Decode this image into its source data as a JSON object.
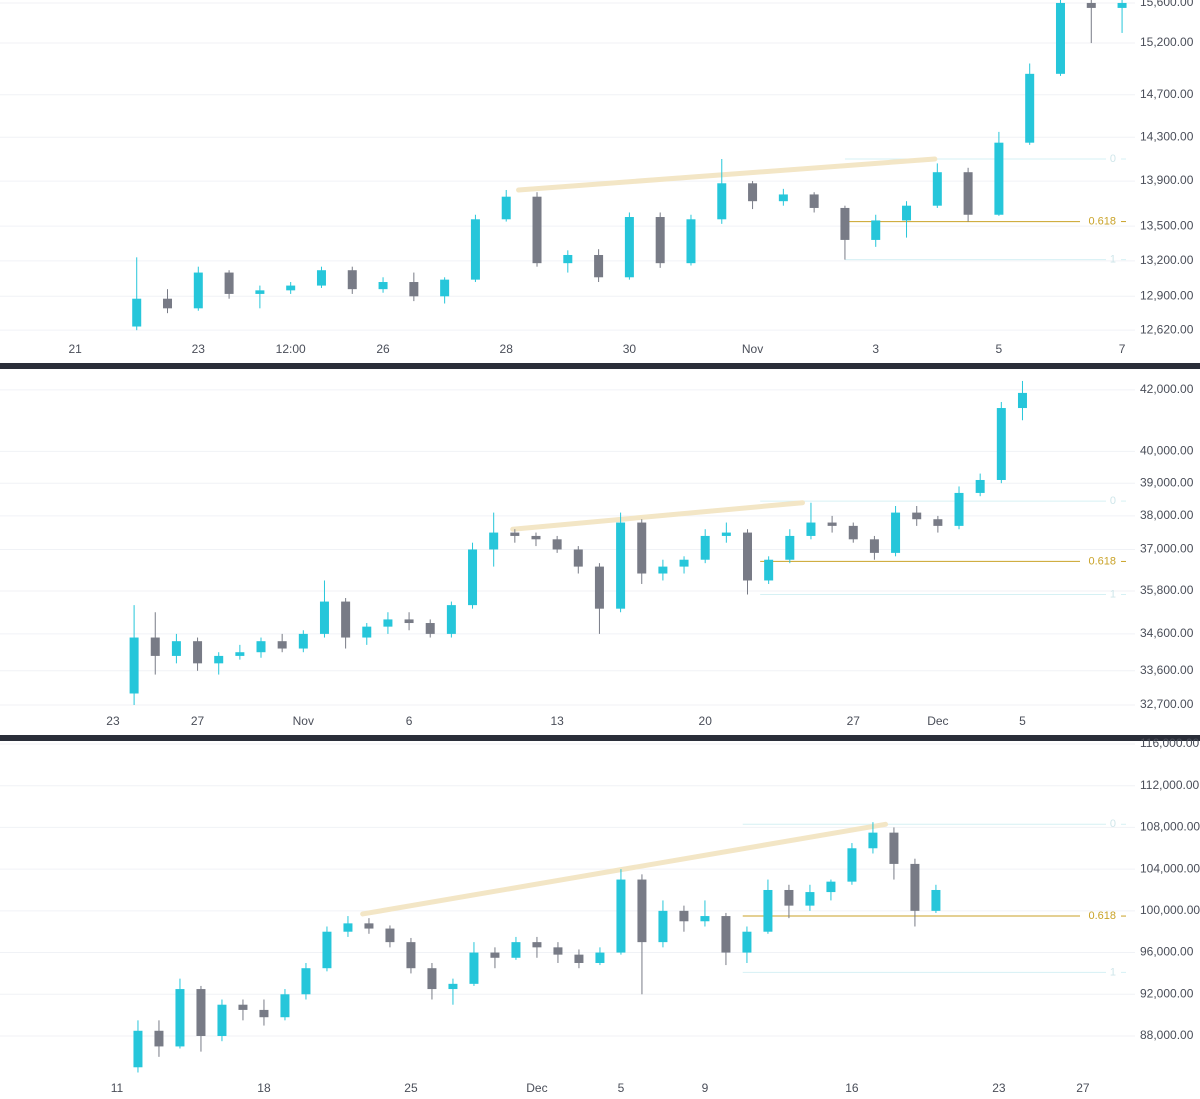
{
  "chart_data": [
    {
      "type": "candlestick",
      "log": true,
      "grid": true,
      "up_color": "#26c6da",
      "down_color": "#787b86",
      "xlim": [
        -1.22,
        17.21
      ],
      "ylim": [
        12540,
        15630
      ],
      "xticks": [
        {
          "value": 0,
          "label": "21"
        },
        {
          "value": 2,
          "label": "23"
        },
        {
          "value": 3.5,
          "label": "12:00"
        },
        {
          "value": 5,
          "label": "26"
        },
        {
          "value": 7,
          "label": "28"
        },
        {
          "value": 9,
          "label": "30"
        },
        {
          "value": 11,
          "label": "Nov"
        },
        {
          "value": 13,
          "label": "3"
        },
        {
          "value": 15,
          "label": "5"
        },
        {
          "value": 17,
          "label": "7"
        }
      ],
      "yticks": [
        {
          "value": 12620,
          "label": "12,620.00"
        },
        {
          "value": 12900,
          "label": "12,900.00"
        },
        {
          "value": 13200,
          "label": "13,200.00"
        },
        {
          "value": 13500,
          "label": "13,500.00"
        },
        {
          "value": 13900,
          "label": "13,900.00"
        },
        {
          "value": 14300,
          "label": "14,300.00"
        },
        {
          "value": 14700,
          "label": "14,700.00"
        },
        {
          "value": 15200,
          "label": "15,200.00"
        },
        {
          "value": 15600,
          "label": "15,600.00"
        }
      ],
      "x": [
        1,
        1.5,
        2,
        2.5,
        3,
        3.5,
        4,
        4.5,
        5,
        5.5,
        6,
        6.5,
        7,
        7.5,
        8,
        8.5,
        9,
        9.5,
        10,
        10.5,
        11,
        11.5,
        12,
        12.5,
        13,
        13.5,
        14,
        14.5,
        15,
        15.5,
        16,
        16.5,
        17
      ],
      "open": [
        12650,
        12880,
        12800,
        13100,
        12920,
        12950,
        12990,
        13120,
        12960,
        13020,
        12900,
        13040,
        13560,
        13760,
        13180,
        13250,
        13060,
        13580,
        13180,
        13560,
        13880,
        13720,
        13780,
        13660,
        13380,
        13550,
        13680,
        13980,
        13600,
        14250,
        14900,
        15600,
        15550
      ],
      "high": [
        13230,
        12960,
        13150,
        13120,
        12990,
        13020,
        13150,
        13150,
        13060,
        13100,
        13060,
        13600,
        13820,
        13800,
        13290,
        13300,
        13620,
        13620,
        13600,
        14100,
        13900,
        13830,
        13800,
        13680,
        13600,
        13720,
        14060,
        14020,
        14350,
        15000,
        15650,
        15650,
        15650
      ],
      "low": [
        12620,
        12760,
        12780,
        12880,
        12800,
        12920,
        12970,
        12920,
        12930,
        12860,
        12840,
        13020,
        13540,
        13150,
        13100,
        13020,
        13040,
        13140,
        13160,
        13520,
        13650,
        13680,
        13620,
        13210,
        13320,
        13400,
        13660,
        13540,
        13590,
        14230,
        14880,
        15200,
        15300
      ],
      "close": [
        12880,
        12800,
        13100,
        12920,
        12950,
        12990,
        13120,
        12960,
        13020,
        12900,
        13040,
        13560,
        13760,
        13180,
        13250,
        13060,
        13580,
        13180,
        13560,
        13880,
        13720,
        13780,
        13660,
        13380,
        13550,
        13680,
        13980,
        13600,
        14250,
        14900,
        15600,
        15550,
        15600
      ],
      "trendline": {
        "x": [
          7.2,
          13.96
        ],
        "y": [
          13820,
          14100
        ],
        "color": "#f3e6c6"
      },
      "fib_from": 12.5,
      "fib_levels": [
        {
          "ratio": 0,
          "price": 14100
        },
        {
          "ratio": 0.618,
          "price": 13540
        },
        {
          "ratio": 1,
          "price": 13210
        }
      ]
    },
    {
      "type": "candlestick",
      "log": true,
      "grid": true,
      "up_color": "#26c6da",
      "down_color": "#787b86",
      "xlim": [
        -5.34,
        48.32
      ],
      "ylim": [
        32570,
        42670
      ],
      "xticks": [
        {
          "value": 0,
          "label": "23"
        },
        {
          "value": 4,
          "label": "27"
        },
        {
          "value": 9,
          "label": "Nov"
        },
        {
          "value": 14,
          "label": "6"
        },
        {
          "value": 21,
          "label": "13"
        },
        {
          "value": 28,
          "label": "20"
        },
        {
          "value": 35,
          "label": "27"
        },
        {
          "value": 39,
          "label": "Dec"
        },
        {
          "value": 43,
          "label": "5"
        }
      ],
      "yticks": [
        {
          "value": 32700,
          "label": "32,700.00"
        },
        {
          "value": 33600,
          "label": "33,600.00"
        },
        {
          "value": 34600,
          "label": "34,600.00"
        },
        {
          "value": 35800,
          "label": "35,800.00"
        },
        {
          "value": 37000,
          "label": "37,000.00"
        },
        {
          "value": 38000,
          "label": "38,000.00"
        },
        {
          "value": 39000,
          "label": "39,000.00"
        },
        {
          "value": 40000,
          "label": "40,000.00"
        },
        {
          "value": 42000,
          "label": "42,000.00"
        }
      ],
      "x": [
        1,
        2,
        3,
        4,
        5,
        6,
        7,
        8,
        9,
        10,
        11,
        12,
        13,
        14,
        15,
        16,
        17,
        18,
        19,
        20,
        21,
        22,
        23,
        24,
        25,
        26,
        27,
        28,
        29,
        30,
        31,
        32,
        33,
        34,
        35,
        36,
        37,
        38,
        39,
        40,
        41,
        42,
        43
      ],
      "open": [
        33000,
        34500,
        34000,
        34400,
        33800,
        34000,
        34100,
        34400,
        34200,
        34600,
        35500,
        34500,
        34800,
        35000,
        34900,
        34600,
        35400,
        37000,
        37500,
        37400,
        37300,
        37000,
        36500,
        35300,
        37800,
        36300,
        36500,
        36700,
        37400,
        37500,
        36100,
        36700,
        37400,
        37800,
        37700,
        37300,
        36900,
        38100,
        37900,
        37700,
        38700,
        39100,
        41400
      ],
      "high": [
        35400,
        35200,
        34600,
        34500,
        34100,
        34300,
        34500,
        34600,
        34700,
        36100,
        35600,
        34900,
        35200,
        35200,
        35000,
        35500,
        37200,
        38100,
        37600,
        37500,
        37400,
        37100,
        36600,
        38100,
        37900,
        36700,
        36800,
        37600,
        37800,
        37600,
        36800,
        37600,
        38400,
        38000,
        37800,
        37400,
        38300,
        38300,
        38000,
        38900,
        39300,
        41600,
        42300
      ],
      "low": [
        32700,
        33500,
        33800,
        33600,
        33500,
        33900,
        33950,
        34100,
        34100,
        34500,
        34200,
        34300,
        34600,
        34700,
        34500,
        34500,
        35300,
        36500,
        37200,
        37100,
        36900,
        36300,
        34600,
        35200,
        36000,
        36100,
        36300,
        36600,
        37200,
        35700,
        36000,
        36600,
        37300,
        37500,
        37200,
        36700,
        36800,
        37700,
        37500,
        37600,
        38600,
        39000,
        41000
      ],
      "close": [
        34500,
        34000,
        34400,
        33800,
        34000,
        34100,
        34400,
        34200,
        34600,
        35500,
        34500,
        34800,
        35000,
        34900,
        34600,
        35400,
        37000,
        37500,
        37400,
        37300,
        37000,
        36500,
        35300,
        37800,
        36300,
        36500,
        36700,
        37400,
        37500,
        36100,
        36700,
        37400,
        37800,
        37700,
        37300,
        36900,
        38100,
        37900,
        37700,
        38700,
        39100,
        41400,
        41900
      ],
      "trendline": {
        "x": [
          18.9,
          32.6
        ],
        "y": [
          37600,
          38400
        ],
        "color": "#f3e6c6"
      },
      "fib_from": 30.6,
      "fib_levels": [
        {
          "ratio": 0,
          "price": 38450
        },
        {
          "ratio": 0.618,
          "price": 36650
        },
        {
          "ratio": 1,
          "price": 35700
        }
      ]
    },
    {
      "type": "candlestick",
      "log": false,
      "grid": true,
      "up_color": "#26c6da",
      "down_color": "#787b86",
      "xlim": [
        -5.57,
        48.48
      ],
      "ylim": [
        83780,
        116190
      ],
      "xticks": [
        {
          "value": 0,
          "label": "11"
        },
        {
          "value": 7,
          "label": "18"
        },
        {
          "value": 14,
          "label": "25"
        },
        {
          "value": 20,
          "label": "Dec"
        },
        {
          "value": 24,
          "label": "5"
        },
        {
          "value": 28,
          "label": "9"
        },
        {
          "value": 35,
          "label": "16"
        },
        {
          "value": 42,
          "label": "23"
        },
        {
          "value": 46,
          "label": "27"
        }
      ],
      "yticks": [
        {
          "value": 88000,
          "label": "88,000.00"
        },
        {
          "value": 92000,
          "label": "92,000.00"
        },
        {
          "value": 96000,
          "label": "96,000.00"
        },
        {
          "value": 100000,
          "label": "100,000.00"
        },
        {
          "value": 104000,
          "label": "104,000.00"
        },
        {
          "value": 108000,
          "label": "108,000.00"
        },
        {
          "value": 112000,
          "label": "112,000.00"
        },
        {
          "value": 116000,
          "label": "116,000.00"
        }
      ],
      "x": [
        1,
        2,
        3,
        4,
        5,
        6,
        7,
        8,
        9,
        10,
        11,
        12,
        13,
        14,
        15,
        16,
        17,
        18,
        19,
        20,
        21,
        22,
        23,
        24,
        25,
        26,
        27,
        28,
        29,
        30,
        31,
        32,
        33,
        34,
        35,
        36,
        37,
        38,
        39
      ],
      "open": [
        85000,
        88500,
        87000,
        92500,
        88000,
        91000,
        90500,
        89800,
        92000,
        94500,
        98000,
        98800,
        98300,
        97000,
        94500,
        92500,
        93000,
        96000,
        95500,
        97000,
        96500,
        95800,
        95000,
        96000,
        103000,
        97000,
        100000,
        99000,
        99500,
        96000,
        98000,
        102000,
        100500,
        101800,
        102800,
        106000,
        107500,
        104500,
        100000
      ],
      "high": [
        89500,
        89500,
        93500,
        92800,
        91500,
        91500,
        91500,
        92500,
        95000,
        98500,
        99500,
        99300,
        98600,
        97400,
        95000,
        93500,
        97000,
        96500,
        97500,
        97500,
        97000,
        96300,
        96500,
        104000,
        103500,
        101000,
        100500,
        101000,
        99800,
        98500,
        103000,
        102500,
        102500,
        103000,
        106500,
        108500,
        108000,
        105000,
        102500
      ],
      "low": [
        84500,
        86000,
        86800,
        86500,
        87500,
        89500,
        89000,
        89500,
        91500,
        94200,
        97500,
        97800,
        96500,
        94000,
        91500,
        91000,
        92800,
        94500,
        95300,
        95500,
        95000,
        94500,
        94800,
        95800,
        92000,
        96500,
        98000,
        98500,
        94800,
        95000,
        97800,
        99300,
        100000,
        101000,
        102500,
        105500,
        103000,
        98500,
        99800
      ],
      "close": [
        88500,
        87000,
        92500,
        88000,
        91000,
        90500,
        89800,
        92000,
        94500,
        98000,
        98800,
        98300,
        97000,
        94500,
        92500,
        93000,
        96000,
        95500,
        97000,
        96500,
        95800,
        95000,
        96000,
        103000,
        97000,
        100000,
        99000,
        99500,
        96000,
        98000,
        102000,
        100500,
        101800,
        102800,
        106000,
        107500,
        104500,
        100000,
        102000
      ],
      "trendline": {
        "x": [
          11.7,
          36.6
        ],
        "y": [
          99700,
          108300
        ],
        "color": "#f3e6c6"
      },
      "fib_from": 29.8,
      "fib_levels": [
        {
          "ratio": 0,
          "price": 108300
        },
        {
          "ratio": 0.618,
          "price": 99500
        },
        {
          "ratio": 1,
          "price": 94100
        }
      ]
    }
  ]
}
